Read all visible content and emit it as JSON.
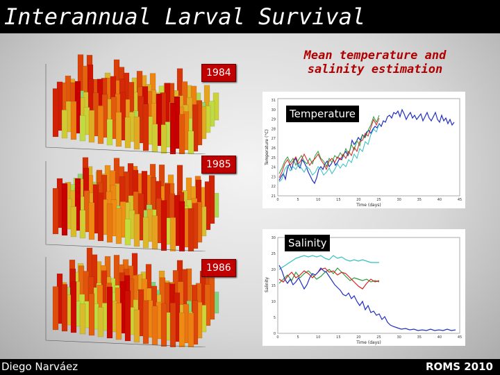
{
  "header": {
    "title": "Interannual Larval Survival"
  },
  "footer": {
    "author": "Diego Narváez",
    "event": "ROMS 2010"
  },
  "years": [
    "1984",
    "1985",
    "1986"
  ],
  "subtitle": "Mean temperature and salinity estimation",
  "panels": {
    "temperature": {
      "label": "Temperature",
      "ylabel": "Temperature (°C)",
      "xlabel": "Time (days)",
      "yticks": [
        "21",
        "22",
        "23",
        "24",
        "25",
        "26",
        "27",
        "28",
        "29",
        "30",
        "31"
      ],
      "xticks": [
        "0",
        "5",
        "10",
        "15",
        "20",
        "25",
        "30",
        "35",
        "40",
        "45"
      ]
    },
    "salinity": {
      "label": "Salinity",
      "ylabel": "Salinity",
      "xlabel": "Time (days)",
      "yticks": [
        "0",
        "5",
        "10",
        "15",
        "20",
        "25",
        "30"
      ],
      "xticks": [
        "0",
        "5",
        "10",
        "15",
        "20",
        "25",
        "30",
        "35",
        "40",
        "45"
      ]
    }
  },
  "colors": {
    "blue": "#1f2fbf",
    "green": "#2a9a3a",
    "red": "#d42020",
    "cyan": "#2fc0c0",
    "black": "#000000"
  }
}
